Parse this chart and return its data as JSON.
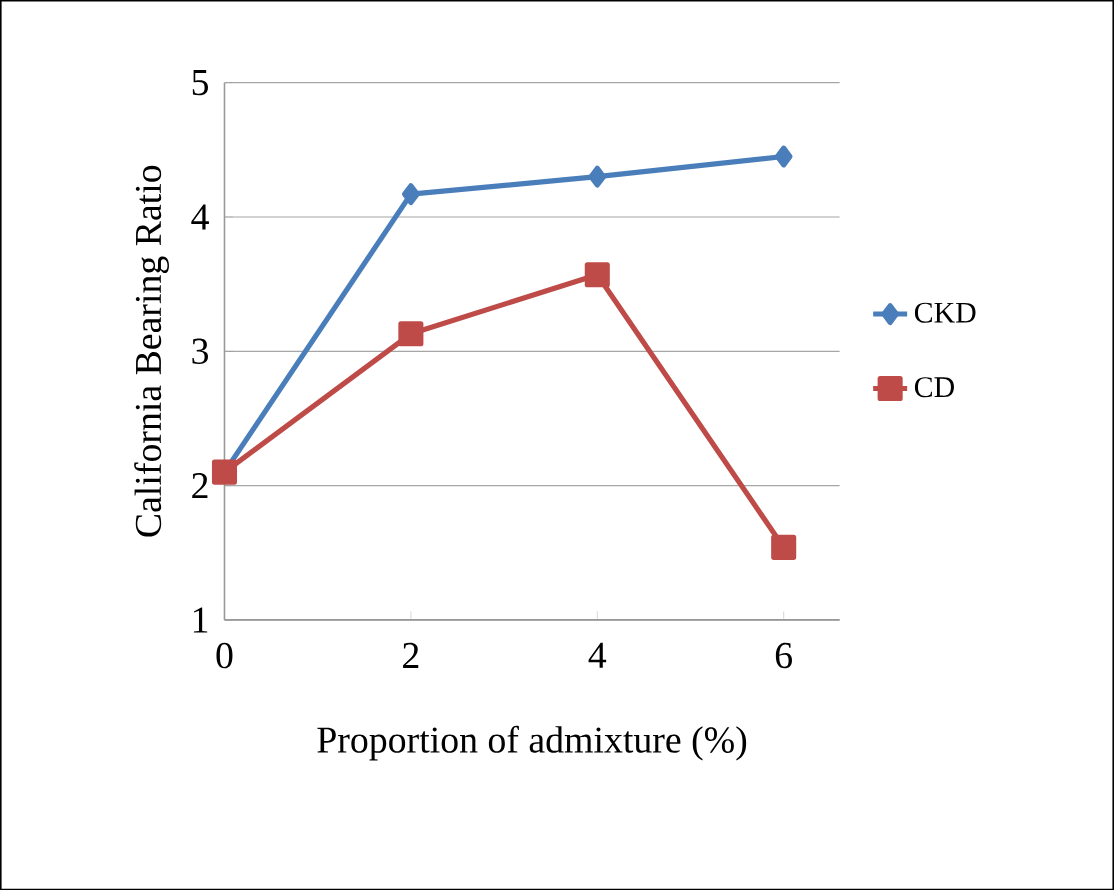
{
  "chart_data": {
    "type": "line",
    "xlabel": "Proportion of admixture (%)",
    "ylabel": "California Bearing Ratio",
    "categories": [
      "0",
      "2",
      "4",
      "6"
    ],
    "series": [
      {
        "name": "CKD",
        "color": "#4a7ebb",
        "marker": "diamond",
        "values": [
          2.1,
          4.17,
          4.3,
          4.45
        ]
      },
      {
        "name": "CD",
        "color": "#be4b48",
        "marker": "square",
        "values": [
          2.1,
          3.13,
          3.57,
          1.54
        ]
      }
    ],
    "ylim": [
      1,
      5
    ],
    "yticks": [
      1,
      2,
      3,
      4,
      5
    ],
    "grid": "y",
    "legend": "right"
  }
}
